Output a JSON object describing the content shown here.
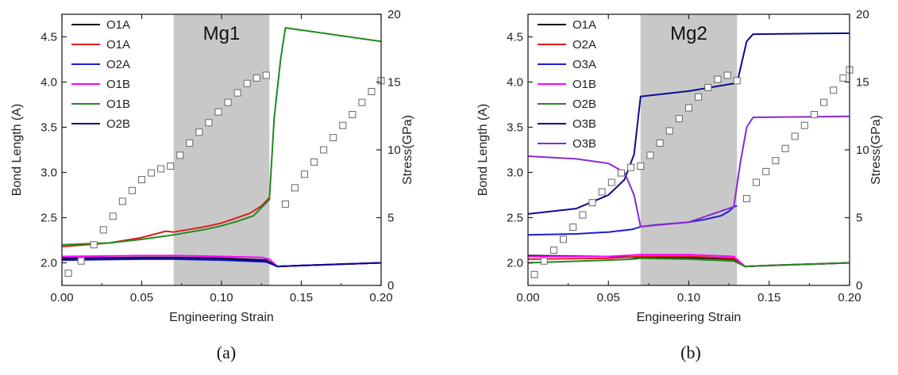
{
  "chart_data": [
    {
      "type": "line",
      "panel_label": "(a)",
      "shaded_label": "Mg1",
      "shaded_range": [
        0.07,
        0.13
      ],
      "xlabel": "Engineering Strain",
      "ylabel": "Bond Length (A)",
      "y2label": "Stress(GPa)",
      "xlim": [
        0.0,
        0.2
      ],
      "ylim": [
        1.75,
        4.75
      ],
      "y2lim": [
        0,
        20
      ],
      "xticks": [
        "0.00",
        "0.05",
        "0.10",
        "0.15",
        "0.20"
      ],
      "xtick_values": [
        0.0,
        0.05,
        0.1,
        0.15,
        0.2
      ],
      "yticks": [
        "2.0",
        "2.5",
        "3.0",
        "3.5",
        "4.0",
        "4.5"
      ],
      "ytick_values": [
        2.0,
        2.5,
        3.0,
        3.5,
        4.0,
        4.5
      ],
      "y2ticks": [
        "0",
        "5",
        "10",
        "15",
        "20"
      ],
      "y2tick_values": [
        0,
        5,
        10,
        15,
        20
      ],
      "legend_position": "top-left",
      "series": [
        {
          "name": "O1A",
          "color": "#000000",
          "x": [
            0.0,
            0.05,
            0.07,
            0.1,
            0.128,
            0.135,
            0.15,
            0.2
          ],
          "y": [
            2.05,
            2.06,
            2.06,
            2.05,
            2.03,
            1.96,
            1.97,
            2.0
          ]
        },
        {
          "name": "O1A",
          "color": "#e11b1b",
          "x": [
            0.0,
            0.03,
            0.05,
            0.065,
            0.07,
            0.08,
            0.09,
            0.1,
            0.11,
            0.118,
            0.125,
            0.13
          ],
          "y": [
            2.18,
            2.22,
            2.28,
            2.35,
            2.34,
            2.37,
            2.4,
            2.44,
            2.5,
            2.55,
            2.63,
            2.72
          ]
        },
        {
          "name": "O2A",
          "color": "#1c1cd6",
          "x": [
            0.0,
            0.05,
            0.07,
            0.1,
            0.128,
            0.135,
            0.15,
            0.2
          ],
          "y": [
            2.03,
            2.04,
            2.04,
            2.03,
            2.01,
            1.96,
            1.97,
            2.0
          ]
        },
        {
          "name": "O1B",
          "color": "#ff00ff",
          "x": [
            0.0,
            0.05,
            0.07,
            0.1,
            0.125,
            0.13,
            0.135,
            0.15,
            0.2
          ],
          "y": [
            2.07,
            2.08,
            2.08,
            2.07,
            2.06,
            2.04,
            1.96,
            1.97,
            2.0
          ]
        },
        {
          "name": "O1B",
          "color": "#1f8a1f",
          "x": [
            0.0,
            0.03,
            0.05,
            0.07,
            0.09,
            0.1,
            0.11,
            0.12,
            0.13,
            0.133,
            0.137,
            0.14,
            0.2
          ],
          "y": [
            2.2,
            2.22,
            2.26,
            2.31,
            2.37,
            2.41,
            2.46,
            2.52,
            2.7,
            3.6,
            4.25,
            4.6,
            4.45
          ]
        },
        {
          "name": "O2B",
          "color": "#0c0c8a",
          "x": [
            0.0,
            0.05,
            0.07,
            0.1,
            0.128,
            0.135,
            0.15,
            0.2
          ],
          "y": [
            2.04,
            2.05,
            2.05,
            2.04,
            2.02,
            1.96,
            1.97,
            2.0
          ]
        }
      ],
      "stress": {
        "x": [
          0.004,
          0.012,
          0.02,
          0.026,
          0.032,
          0.038,
          0.044,
          0.05,
          0.056,
          0.062,
          0.068,
          0.074,
          0.08,
          0.086,
          0.092,
          0.098,
          0.104,
          0.11,
          0.116,
          0.122,
          0.128,
          0.14,
          0.146,
          0.152,
          0.158,
          0.164,
          0.17,
          0.176,
          0.182,
          0.188,
          0.194,
          0.2
        ],
        "y": [
          0.9,
          1.8,
          3.0,
          4.1,
          5.1,
          6.2,
          7.0,
          7.8,
          8.3,
          8.6,
          8.8,
          9.6,
          10.5,
          11.3,
          12.0,
          12.8,
          13.5,
          14.2,
          14.9,
          15.3,
          15.5,
          6.0,
          7.2,
          8.2,
          9.1,
          10.0,
          10.9,
          11.8,
          12.6,
          13.5,
          14.3,
          15.1
        ]
      }
    },
    {
      "type": "line",
      "panel_label": "(b)",
      "shaded_label": "Mg2",
      "shaded_range": [
        0.07,
        0.13
      ],
      "xlabel": "Engineering Strain",
      "ylabel": "Bond Length (A)",
      "y2label": "Stress(GPa)",
      "xlim": [
        0.0,
        0.2
      ],
      "ylim": [
        1.75,
        4.75
      ],
      "y2lim": [
        0,
        20
      ],
      "xticks": [
        "0.00",
        "0.05",
        "0.10",
        "0.15",
        "0.20"
      ],
      "xtick_values": [
        0.0,
        0.05,
        0.1,
        0.15,
        0.2
      ],
      "yticks": [
        "2.0",
        "2.5",
        "3.0",
        "3.5",
        "4.0",
        "4.5"
      ],
      "ytick_values": [
        2.0,
        2.5,
        3.0,
        3.5,
        4.0,
        4.5
      ],
      "y2ticks": [
        "0",
        "5",
        "10",
        "15",
        "20"
      ],
      "y2tick_values": [
        0,
        5,
        10,
        15,
        20
      ],
      "legend_position": "top-left",
      "series": [
        {
          "name": "O1A",
          "color": "#000000",
          "x": [
            0.0,
            0.05,
            0.07,
            0.1,
            0.128,
            0.135,
            0.15,
            0.2
          ],
          "y": [
            2.08,
            2.07,
            2.06,
            2.06,
            2.04,
            1.96,
            1.97,
            2.0
          ]
        },
        {
          "name": "O2A",
          "color": "#e11b1b",
          "x": [
            0.0,
            0.05,
            0.07,
            0.1,
            0.128,
            0.135,
            0.15,
            0.2
          ],
          "y": [
            2.04,
            2.05,
            2.07,
            2.07,
            2.05,
            1.96,
            1.97,
            2.0
          ]
        },
        {
          "name": "O3A",
          "color": "#1c1cd6",
          "x": [
            0.0,
            0.03,
            0.05,
            0.065,
            0.07,
            0.08,
            0.1,
            0.11,
            0.12,
            0.125,
            0.128,
            0.13
          ],
          "y": [
            2.31,
            2.32,
            2.34,
            2.37,
            2.4,
            2.42,
            2.45,
            2.48,
            2.52,
            2.57,
            2.62,
            2.63
          ]
        },
        {
          "name": "O1B",
          "color": "#ff00ff",
          "x": [
            0.0,
            0.05,
            0.07,
            0.1,
            0.128,
            0.135,
            0.15,
            0.2
          ],
          "y": [
            2.07,
            2.07,
            2.09,
            2.09,
            2.07,
            1.96,
            1.97,
            2.0
          ]
        },
        {
          "name": "O2B",
          "color": "#1f8a1f",
          "x": [
            0.0,
            0.05,
            0.065,
            0.07,
            0.1,
            0.128,
            0.135,
            0.15,
            0.2
          ],
          "y": [
            2.0,
            2.03,
            2.04,
            2.05,
            2.04,
            2.02,
            1.96,
            1.97,
            2.0
          ]
        },
        {
          "name": "O3B",
          "color": "#0c0c8a",
          "x": [
            0.0,
            0.03,
            0.05,
            0.06,
            0.066,
            0.07,
            0.1,
            0.13,
            0.136,
            0.14,
            0.2
          ],
          "y": [
            2.54,
            2.6,
            2.75,
            2.92,
            3.2,
            3.84,
            3.9,
            3.99,
            4.45,
            4.53,
            4.54
          ]
        },
        {
          "name": "O3B",
          "color": "#8d27d6",
          "x": [
            0.0,
            0.03,
            0.05,
            0.06,
            0.066,
            0.07,
            0.1,
            0.128,
            0.132,
            0.136,
            0.14,
            0.2
          ],
          "y": [
            3.18,
            3.15,
            3.1,
            3.0,
            2.75,
            2.4,
            2.45,
            2.62,
            3.1,
            3.5,
            3.61,
            3.62
          ]
        }
      ],
      "stress": {
        "x": [
          0.004,
          0.01,
          0.016,
          0.022,
          0.028,
          0.034,
          0.04,
          0.046,
          0.052,
          0.058,
          0.064,
          0.07,
          0.076,
          0.082,
          0.088,
          0.094,
          0.1,
          0.106,
          0.112,
          0.118,
          0.124,
          0.13,
          0.136,
          0.142,
          0.148,
          0.154,
          0.16,
          0.166,
          0.172,
          0.178,
          0.184,
          0.19,
          0.196,
          0.2
        ],
        "y": [
          0.8,
          1.8,
          2.6,
          3.4,
          4.3,
          5.2,
          6.1,
          6.9,
          7.6,
          8.3,
          8.7,
          8.8,
          9.6,
          10.5,
          11.4,
          12.3,
          13.1,
          13.9,
          14.6,
          15.2,
          15.5,
          15.1,
          6.4,
          7.6,
          8.4,
          9.2,
          10.1,
          11.0,
          11.8,
          12.6,
          13.5,
          14.4,
          15.3,
          15.9
        ]
      }
    }
  ]
}
